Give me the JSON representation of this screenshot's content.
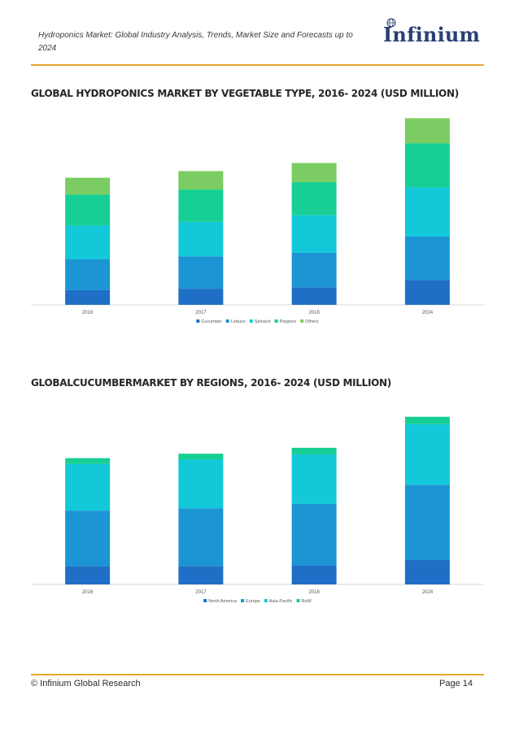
{
  "header": {
    "title": "Hydroponics Market: Global Industry Analysis, Trends, Market Size and Forecasts up to 2024",
    "logo_text": "Infinium",
    "logo_icon": "globe-icon"
  },
  "colors": {
    "rule": "#e3a82f",
    "logo": "#2a3f73"
  },
  "section1": {
    "title": "GLOBAL HYDROPONICS MARKET BY VEGETABLE TYPE, 2016- 2024 (USD MILLION)"
  },
  "section2": {
    "title": "GLOBALCUCUMBERMARKET BY REGIONS, 2016- 2024 (USD MILLION)"
  },
  "chart_data": [
    {
      "type": "bar",
      "stacked": true,
      "categories": [
        "2016",
        "2017",
        "2018",
        "2024"
      ],
      "series": [
        {
          "name": "Cucumber",
          "color": "#1f6fc6",
          "values": [
            20,
            22,
            24,
            34
          ]
        },
        {
          "name": "Lettuce",
          "color": "#1b95d4",
          "values": [
            42,
            44,
            47,
            59
          ]
        },
        {
          "name": "Spinach",
          "color": "#12c8d9",
          "values": [
            46,
            47,
            51,
            67
          ]
        },
        {
          "name": "Peppers",
          "color": "#17cf94",
          "values": [
            42,
            44,
            45,
            60
          ]
        },
        {
          "name": "Others",
          "color": "#7bcc62",
          "values": [
            23,
            25,
            26,
            34
          ]
        }
      ],
      "ylim": [
        0,
        260
      ],
      "grid": false,
      "legend": "bottom"
    },
    {
      "type": "bar",
      "stacked": true,
      "categories": [
        "2016",
        "2017",
        "2018",
        "2024"
      ],
      "series": [
        {
          "name": "North America",
          "color": "#1f6fc6",
          "values": [
            25,
            25,
            26,
            33
          ]
        },
        {
          "name": "Europe",
          "color": "#1b95d4",
          "values": [
            75,
            78,
            83,
            102
          ]
        },
        {
          "name": "Asia-Pacific",
          "color": "#12c8d9",
          "values": [
            63,
            66,
            67,
            82
          ]
        },
        {
          "name": "RoW",
          "color": "#17cf94",
          "values": [
            8,
            8,
            9,
            10
          ]
        }
      ],
      "ylim": [
        0,
        230
      ],
      "grid": false,
      "legend": "bottom"
    }
  ],
  "footer": {
    "left": "© Infinium Global Research",
    "right": "Page 14"
  }
}
